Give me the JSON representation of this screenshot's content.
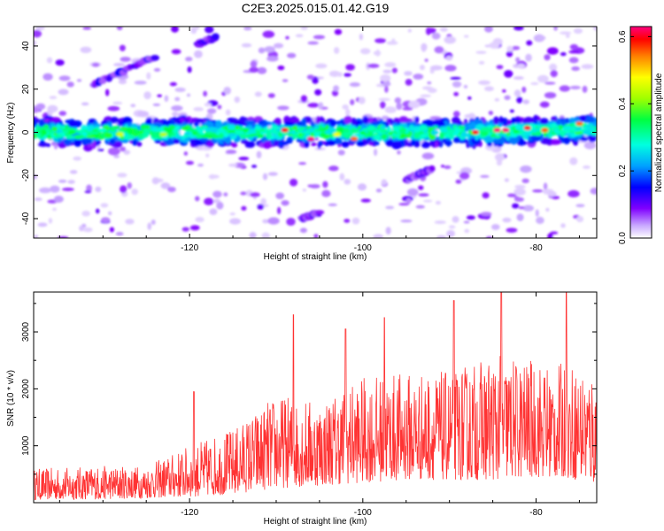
{
  "title": "C2E3.2025.015.01.42.G19",
  "chart_data": [
    {
      "type": "heatmap",
      "xlabel": "Height of straight line (km)",
      "ylabel": "Frequency (Hz)",
      "xlim": [
        -138,
        -73
      ],
      "ylim": [
        -49,
        49
      ],
      "xticks": [
        -120,
        -100,
        -80
      ],
      "yticks": [
        -40,
        -20,
        0,
        20,
        40
      ],
      "grid": false,
      "colorbar": {
        "label": "Normalized spectral amplitude",
        "range": [
          0.0,
          0.63
        ],
        "ticks": [
          0.0,
          0.2,
          0.4,
          0.6
        ],
        "colors": [
          "#ffffff",
          "#c8a8ff",
          "#8000ff",
          "#0000ff",
          "#00a0ff",
          "#00ffe0",
          "#00ff40",
          "#a0ff00",
          "#ffff00",
          "#ff8000",
          "#ff0000",
          "#ff0080"
        ]
      },
      "features": [
        {
          "label": "main band",
          "x": [
            -138,
            -73
          ],
          "y": [
            -2,
            3
          ],
          "peak_amplitude": 0.63
        },
        {
          "label": "streak",
          "x": [
            -131,
            -124
          ],
          "y": [
            22,
            35
          ],
          "peak_amplitude": 0.15
        },
        {
          "label": "streak",
          "x": [
            -119,
            -117
          ],
          "y": [
            41,
            44
          ],
          "peak_amplitude": 0.15
        },
        {
          "label": "streak",
          "x": [
            -95,
            -92
          ],
          "y": [
            -22,
            -17
          ],
          "peak_amplitude": 0.12
        },
        {
          "label": "streak",
          "x": [
            -107,
            -105
          ],
          "y": [
            -40,
            -37
          ],
          "peak_amplitude": 0.12
        }
      ]
    },
    {
      "type": "line",
      "xlabel": "Height of straight line (km)",
      "ylabel": "SNR (10 * v/v)",
      "xlim": [
        -138,
        -73
      ],
      "ylim": [
        0,
        3700
      ],
      "xticks": [
        -120,
        -100,
        -80
      ],
      "yticks": [
        1000,
        2000,
        3000
      ],
      "grid": false,
      "color": "#ff3333",
      "envelope": {
        "x": [
          -138,
          -130,
          -125,
          -120,
          -115,
          -110,
          -105,
          -100,
          -95,
          -90,
          -85,
          -80,
          -75,
          -73
        ],
        "y_low": [
          50,
          60,
          80,
          100,
          150,
          250,
          300,
          350,
          400,
          400,
          400,
          450,
          400,
          300
        ],
        "y_high": [
          600,
          650,
          650,
          1000,
          1300,
          1900,
          1800,
          2200,
          2300,
          2300,
          2600,
          2500,
          2400,
          2400
        ]
      },
      "spikes": [
        {
          "x": -119.5,
          "y": 1950
        },
        {
          "x": -108,
          "y": 3300
        },
        {
          "x": -102,
          "y": 3050
        },
        {
          "x": -97.5,
          "y": 3250
        },
        {
          "x": -89.5,
          "y": 3550
        },
        {
          "x": -84,
          "y": 3700
        },
        {
          "x": -76.5,
          "y": 3700
        }
      ]
    }
  ]
}
